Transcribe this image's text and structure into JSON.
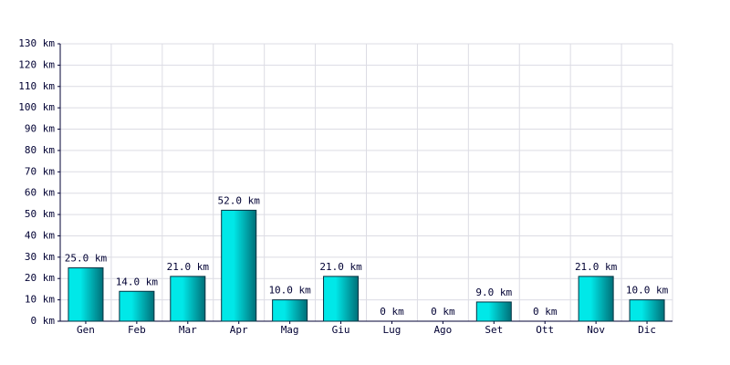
{
  "chart_data": {
    "type": "bar",
    "categories": [
      "Gen",
      "Feb",
      "Mar",
      "Apr",
      "Mag",
      "Giu",
      "Lug",
      "Ago",
      "Set",
      "Ott",
      "Nov",
      "Dic"
    ],
    "values": [
      25,
      14,
      21,
      52,
      10,
      21,
      0,
      0,
      9,
      0,
      21,
      10
    ],
    "value_labels": [
      "25.0 km",
      "14.0 km",
      "21.0 km",
      "52.0 km",
      "10.0 km",
      "21.0 km",
      "0 km",
      "0 km",
      "9.0 km",
      "0 km",
      "21.0 km",
      "10.0 km"
    ],
    "color": "#00e8e8",
    "ylim": [
      0,
      130
    ],
    "yticks": [
      {
        "value": 0,
        "label": "0 km"
      },
      {
        "value": 10,
        "label": "10 km"
      },
      {
        "value": 20,
        "label": "20 km"
      },
      {
        "value": 30,
        "label": "30 km"
      },
      {
        "value": 40,
        "label": "40 km"
      },
      {
        "value": 50,
        "label": "50 km"
      },
      {
        "value": 60,
        "label": "60 km"
      },
      {
        "value": 70,
        "label": "70 km"
      },
      {
        "value": 80,
        "label": "80 km"
      },
      {
        "value": 90,
        "label": "90 km"
      },
      {
        "value": 100,
        "label": "100 km"
      },
      {
        "value": 110,
        "label": "110 km"
      },
      {
        "value": 120,
        "label": "120 km"
      },
      {
        "value": 130,
        "label": "130 km"
      }
    ],
    "grid": true
  }
}
